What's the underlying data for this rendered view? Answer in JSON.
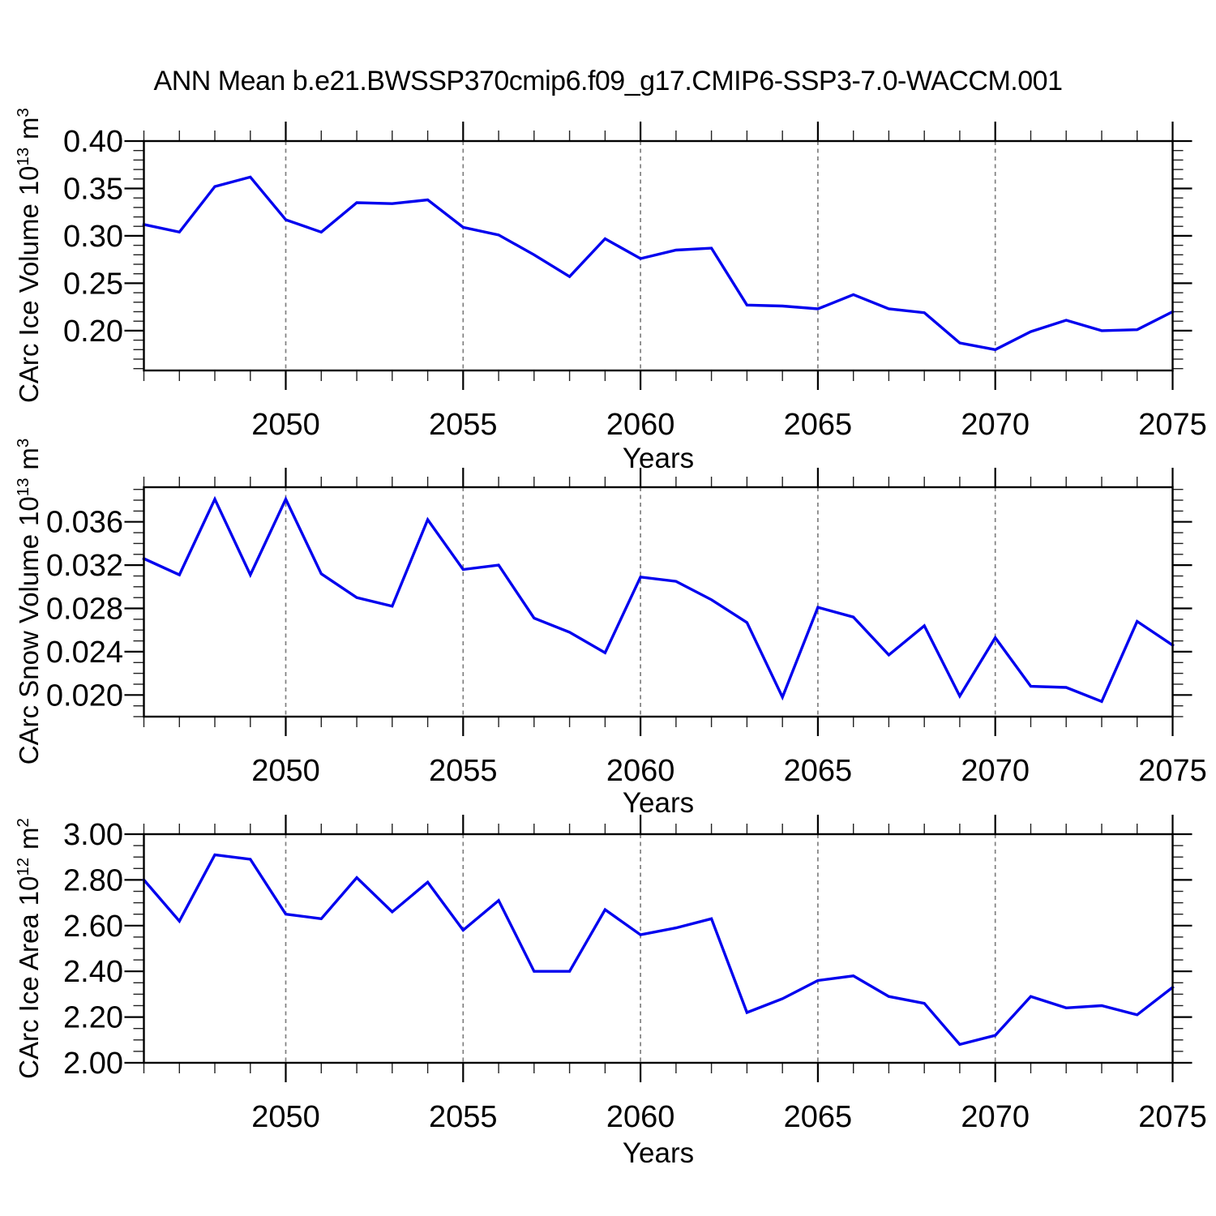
{
  "title": "ANN Mean b.e21.BWSSP370cmip6.f09_g17.CMIP6-SSP3-7.0-WACCM.001",
  "colors": {
    "line": "#0000ee",
    "grid": "#808080",
    "axis": "#000000",
    "minor_tick": "#222222",
    "text": "#000000",
    "background": "#ffffff"
  },
  "chart_data": [
    {
      "type": "line",
      "name": "carc-ice-volume",
      "ylabel": {
        "name": "CArc Ice Volume",
        "base": "10",
        "base_exp": "13",
        "unit": "m",
        "unit_exp": "3"
      },
      "xlabel": "Years",
      "x": [
        2046,
        2047,
        2048,
        2049,
        2050,
        2051,
        2052,
        2053,
        2054,
        2055,
        2056,
        2057,
        2058,
        2059,
        2060,
        2061,
        2062,
        2063,
        2064,
        2065,
        2066,
        2067,
        2068,
        2069,
        2070,
        2071,
        2072,
        2073,
        2074,
        2075
      ],
      "values": [
        0.312,
        0.304,
        0.352,
        0.362,
        0.317,
        0.304,
        0.335,
        0.334,
        0.338,
        0.309,
        0.301,
        0.28,
        0.257,
        0.297,
        0.276,
        0.285,
        0.287,
        0.227,
        0.226,
        0.223,
        0.238,
        0.223,
        0.219,
        0.187,
        0.18,
        0.199,
        0.211,
        0.2,
        0.201,
        0.22
      ],
      "xlim": [
        2046,
        2075
      ],
      "ylim": [
        0.158,
        0.4
      ],
      "xticks": [
        2050,
        2055,
        2060,
        2065,
        2070,
        2075
      ],
      "xtick_labels": [
        "2050",
        "2055",
        "2060",
        "2065",
        "2070",
        "2075"
      ],
      "x_minor_step": 1,
      "yticks": [
        0.2,
        0.25,
        0.3,
        0.35,
        0.4
      ],
      "ytick_labels": [
        "0.20",
        "0.25",
        "0.30",
        "0.35",
        "0.40"
      ],
      "y_minor_step": 0.01,
      "grid_x": [
        2050,
        2055,
        2060,
        2065,
        2070
      ],
      "grid_style": "vertical-dashed",
      "legend": "none"
    },
    {
      "type": "line",
      "name": "carc-snow-volume",
      "ylabel": {
        "name": "CArc Snow Volume",
        "base": "10",
        "base_exp": "13",
        "unit": "m",
        "unit_exp": "3"
      },
      "xlabel": "Years",
      "x": [
        2046,
        2047,
        2048,
        2049,
        2050,
        2051,
        2052,
        2053,
        2054,
        2055,
        2056,
        2057,
        2058,
        2059,
        2060,
        2061,
        2062,
        2063,
        2064,
        2065,
        2066,
        2067,
        2068,
        2069,
        2070,
        2071,
        2072,
        2073,
        2074,
        2075
      ],
      "values": [
        0.0326,
        0.0311,
        0.0381,
        0.0311,
        0.0381,
        0.0312,
        0.029,
        0.0282,
        0.0362,
        0.0316,
        0.032,
        0.0271,
        0.0258,
        0.0239,
        0.0309,
        0.0305,
        0.0288,
        0.0267,
        0.0198,
        0.0281,
        0.0272,
        0.0237,
        0.0264,
        0.0199,
        0.0253,
        0.0208,
        0.0207,
        0.0194,
        0.0268,
        0.0246
      ],
      "xlim": [
        2046,
        2075
      ],
      "ylim": [
        0.018,
        0.0392
      ],
      "xticks": [
        2050,
        2055,
        2060,
        2065,
        2070,
        2075
      ],
      "xtick_labels": [
        "2050",
        "2055",
        "2060",
        "2065",
        "2070",
        "2075"
      ],
      "x_minor_step": 1,
      "yticks": [
        0.02,
        0.024,
        0.028,
        0.032,
        0.036
      ],
      "ytick_labels": [
        "0.020",
        "0.024",
        "0.028",
        "0.032",
        "0.036"
      ],
      "y_minor_step": 0.001,
      "grid_x": [
        2050,
        2055,
        2060,
        2065,
        2070
      ],
      "grid_style": "vertical-dashed",
      "legend": "none"
    },
    {
      "type": "line",
      "name": "carc-ice-area",
      "ylabel": {
        "name": "CArc Ice Area",
        "base": "10",
        "base_exp": "12",
        "unit": "m",
        "unit_exp": "2"
      },
      "xlabel": "Years",
      "x": [
        2046,
        2047,
        2048,
        2049,
        2050,
        2051,
        2052,
        2053,
        2054,
        2055,
        2056,
        2057,
        2058,
        2059,
        2060,
        2061,
        2062,
        2063,
        2064,
        2065,
        2066,
        2067,
        2068,
        2069,
        2070,
        2071,
        2072,
        2073,
        2074,
        2075
      ],
      "values": [
        2.8,
        2.62,
        2.91,
        2.89,
        2.65,
        2.63,
        2.81,
        2.66,
        2.79,
        2.58,
        2.71,
        2.4,
        2.4,
        2.67,
        2.56,
        2.59,
        2.63,
        2.22,
        2.28,
        2.36,
        2.38,
        2.29,
        2.26,
        2.08,
        2.12,
        2.29,
        2.24,
        2.25,
        2.21,
        2.33
      ],
      "xlim": [
        2046,
        2075
      ],
      "ylim": [
        2.0,
        3.0
      ],
      "xticks": [
        2050,
        2055,
        2060,
        2065,
        2070,
        2075
      ],
      "xtick_labels": [
        "2050",
        "2055",
        "2060",
        "2065",
        "2070",
        "2075"
      ],
      "x_minor_step": 1,
      "yticks": [
        2.0,
        2.2,
        2.4,
        2.6,
        2.8,
        3.0
      ],
      "ytick_labels": [
        "2.00",
        "2.20",
        "2.40",
        "2.60",
        "2.80",
        "3.00"
      ],
      "y_minor_step": 0.05,
      "grid_x": [
        2050,
        2055,
        2060,
        2065,
        2070
      ],
      "grid_style": "vertical-dashed",
      "legend": "none"
    }
  ]
}
